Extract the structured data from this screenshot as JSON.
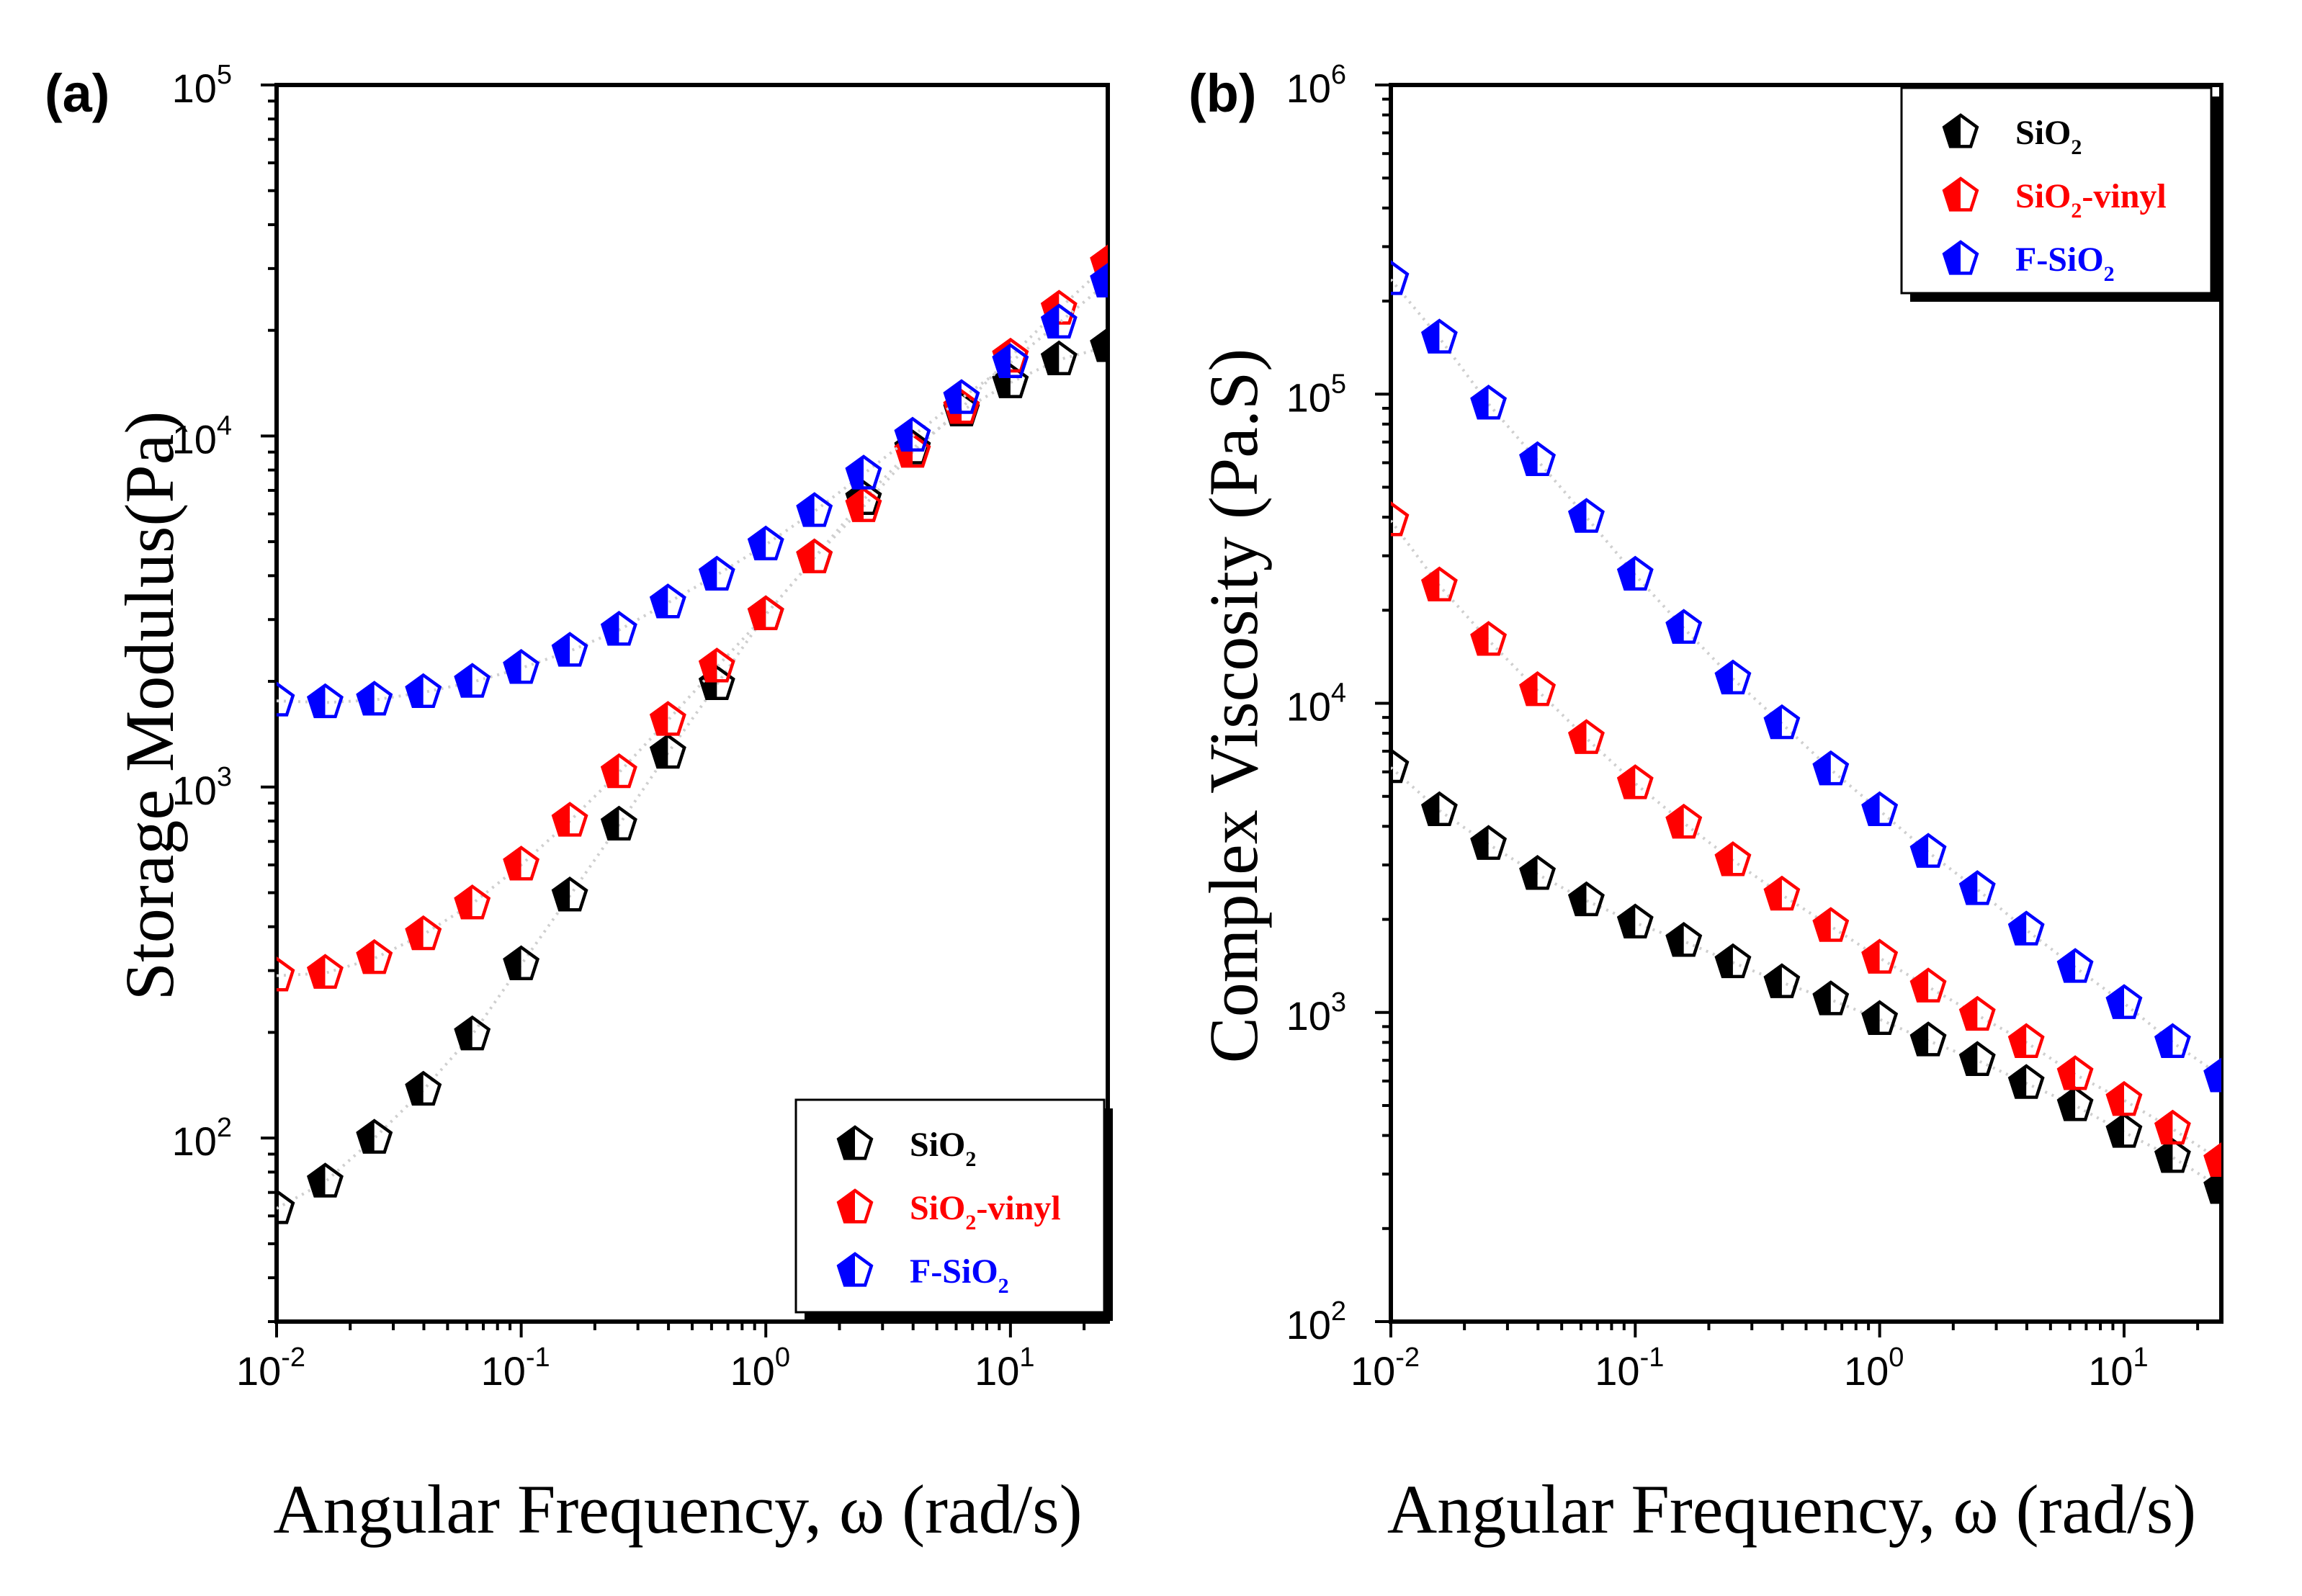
{
  "xlabel": "Angular Frequency, ω (rad/s)",
  "chart_data": [
    {
      "id": "a",
      "panel_label": "(a)",
      "type": "scatter",
      "title": "",
      "xlabel": "Angular Frequency, ω (rad/s)",
      "ylabel": "Storage Modulus(Pa)",
      "xscale": "log",
      "yscale": "log",
      "xlim": [
        0.01,
        25
      ],
      "ylim": [
        30,
        100000
      ],
      "xticks": [
        0.01,
        0.1,
        1,
        10
      ],
      "xtick_labels": [
        {
          "base": "10",
          "exp": "-2"
        },
        {
          "base": "10",
          "exp": "-1"
        },
        {
          "base": "10",
          "exp": "0"
        },
        {
          "base": "10",
          "exp": "1"
        }
      ],
      "yticks": [
        100,
        1000,
        10000,
        100000
      ],
      "ytick_labels": [
        {
          "base": "10",
          "exp": "2"
        },
        {
          "base": "10",
          "exp": "3"
        },
        {
          "base": "10",
          "exp": "4"
        },
        {
          "base": "10",
          "exp": "5"
        }
      ],
      "x": [
        0.01,
        0.0158,
        0.0251,
        0.0398,
        0.0631,
        0.1,
        0.158,
        0.251,
        0.398,
        0.631,
        1.0,
        1.58,
        2.51,
        3.98,
        6.31,
        10.0,
        15.8,
        25.1
      ],
      "legend_position": "bottom-right",
      "series": [
        {
          "name": "SiO2",
          "label_main": "SiO",
          "label_sub": "2",
          "label_tail": "",
          "color": "#000000",
          "values": [
            63,
            75,
            100,
            137,
            197,
            312,
            490,
            780,
            1250,
            1960,
            3100,
            4500,
            6600,
            9200,
            11800,
            14200,
            16500,
            18000
          ]
        },
        {
          "name": "SiO2-vinyl",
          "label_main": "SiO",
          "label_sub": "2",
          "label_tail": "-vinyl",
          "color": "#ff0000",
          "values": [
            290,
            295,
            325,
            380,
            465,
            600,
            800,
            1100,
            1550,
            2200,
            3100,
            4500,
            6300,
            9000,
            12000,
            16800,
            23000,
            31000
          ]
        },
        {
          "name": "F-SiO2",
          "label_main": "F-SiO",
          "label_sub": "2",
          "label_tail": "",
          "color": "#0000ff",
          "values": [
            1760,
            1740,
            1770,
            1860,
            1990,
            2180,
            2440,
            2800,
            3350,
            4020,
            4900,
            6100,
            7800,
            10000,
            12800,
            16200,
            21000,
            27500
          ]
        }
      ]
    },
    {
      "id": "b",
      "panel_label": "(b)",
      "type": "scatter",
      "title": "",
      "xlabel": "Angular Frequency, ω (rad/s)",
      "ylabel": "Complex Viscosity (Pa.S)",
      "xscale": "log",
      "yscale": "log",
      "xlim": [
        0.01,
        25
      ],
      "ylim": [
        100,
        1000000
      ],
      "xticks": [
        0.01,
        0.1,
        1,
        10
      ],
      "xtick_labels": [
        {
          "base": "10",
          "exp": "-2"
        },
        {
          "base": "10",
          "exp": "-1"
        },
        {
          "base": "10",
          "exp": "0"
        },
        {
          "base": "10",
          "exp": "1"
        }
      ],
      "yticks": [
        100,
        1000,
        10000,
        100000,
        1000000
      ],
      "ytick_labels": [
        {
          "base": "10",
          "exp": "2"
        },
        {
          "base": "10",
          "exp": "3"
        },
        {
          "base": "10",
          "exp": "4"
        },
        {
          "base": "10",
          "exp": "5"
        },
        {
          "base": "10",
          "exp": "6"
        }
      ],
      "x": [
        0.01,
        0.0158,
        0.0251,
        0.0398,
        0.0631,
        0.1,
        0.158,
        0.251,
        0.398,
        0.631,
        1.0,
        1.58,
        2.51,
        3.98,
        6.31,
        10.0,
        15.8,
        25.1
      ],
      "legend_position": "top-right",
      "series": [
        {
          "name": "SiO2",
          "label_main": "SiO",
          "label_sub": "2",
          "label_tail": "",
          "color": "#000000",
          "values": [
            6200,
            4500,
            3500,
            2800,
            2300,
            1950,
            1700,
            1450,
            1250,
            1100,
            950,
            810,
            700,
            590,
            500,
            410,
            340,
            270
          ]
        },
        {
          "name": "SiO2-vinyl",
          "label_main": "SiO",
          "label_sub": "2",
          "label_tail": "-vinyl",
          "color": "#ff0000",
          "values": [
            39000,
            24000,
            16000,
            11000,
            7700,
            5500,
            4100,
            3100,
            2400,
            1900,
            1500,
            1210,
            980,
            800,
            630,
            520,
            420,
            330
          ]
        },
        {
          "name": "F-SiO2",
          "label_main": "F-SiO",
          "label_sub": "2",
          "label_tail": "",
          "color": "#0000ff",
          "values": [
            235000,
            152000,
            93000,
            61000,
            40000,
            26000,
            17500,
            12000,
            8600,
            6100,
            4500,
            3300,
            2500,
            1850,
            1400,
            1070,
            800,
            620
          ]
        }
      ]
    }
  ]
}
